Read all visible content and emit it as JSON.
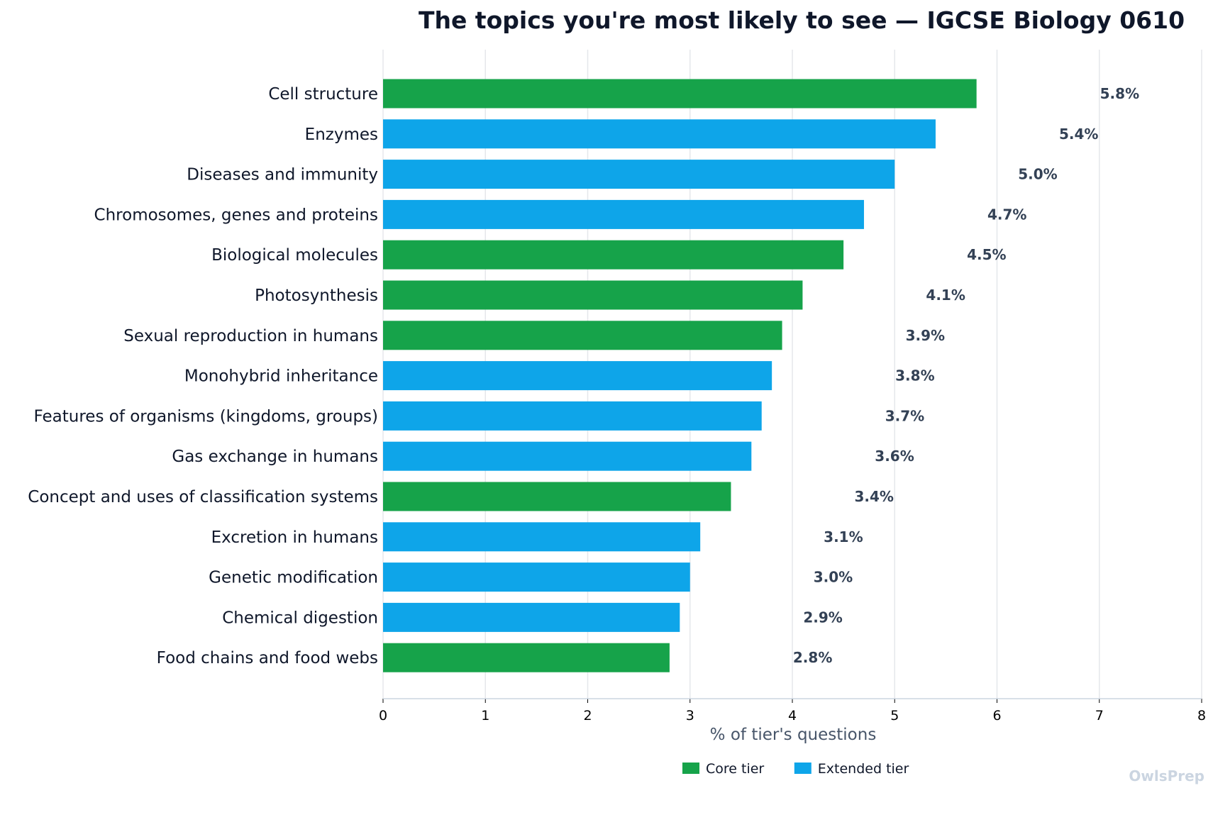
{
  "chart_data": {
    "type": "bar",
    "orientation": "horizontal",
    "title": "The topics you're most likely to see — IGCSE Biology 0610",
    "xlabel": "% of tier's questions",
    "ylabel": "",
    "xlim": [
      0,
      8
    ],
    "x_ticks": [
      "0",
      "1",
      "2",
      "3",
      "4",
      "5",
      "6",
      "7",
      "8"
    ],
    "grid": "vertical",
    "legend_position": "bottom-center",
    "legend": [
      {
        "tier": "core",
        "label": "Core tier",
        "color": "#16a34a"
      },
      {
        "tier": "extended",
        "label": "Extended tier",
        "color": "#0ea5e9"
      }
    ],
    "bars": [
      {
        "category": "Cell structure",
        "value": 5.8,
        "label": "5.8%",
        "tier": "core"
      },
      {
        "category": "Enzymes",
        "value": 5.4,
        "label": "5.4%",
        "tier": "extended"
      },
      {
        "category": "Diseases and immunity",
        "value": 5.0,
        "label": "5.0%",
        "tier": "extended"
      },
      {
        "category": "Chromosomes, genes and proteins",
        "value": 4.7,
        "label": "4.7%",
        "tier": "extended"
      },
      {
        "category": "Biological molecules",
        "value": 4.5,
        "label": "4.5%",
        "tier": "core"
      },
      {
        "category": "Photosynthesis",
        "value": 4.1,
        "label": "4.1%",
        "tier": "core"
      },
      {
        "category": "Sexual reproduction in humans",
        "value": 3.9,
        "label": "3.9%",
        "tier": "core"
      },
      {
        "category": "Monohybrid inheritance",
        "value": 3.8,
        "label": "3.8%",
        "tier": "extended"
      },
      {
        "category": "Features of organisms (kingdoms, groups)",
        "value": 3.7,
        "label": "3.7%",
        "tier": "extended"
      },
      {
        "category": "Gas exchange in humans",
        "value": 3.6,
        "label": "3.6%",
        "tier": "extended"
      },
      {
        "category": "Concept and uses of classification systems",
        "value": 3.4,
        "label": "3.4%",
        "tier": "core"
      },
      {
        "category": "Excretion in humans",
        "value": 3.1,
        "label": "3.1%",
        "tier": "extended"
      },
      {
        "category": "Genetic modification",
        "value": 3.0,
        "label": "3.0%",
        "tier": "extended"
      },
      {
        "category": "Chemical digestion",
        "value": 2.9,
        "label": "2.9%",
        "tier": "extended"
      },
      {
        "category": "Food chains and food webs",
        "value": 2.8,
        "label": "2.8%",
        "tier": "core"
      }
    ],
    "watermark": "OwlsPrep",
    "colors": {
      "title": "#0f172a",
      "category_label": "#0f172a",
      "value_label": "#334155",
      "axis_label": "#475569",
      "grid": "#e5e7eb",
      "axis": "#cbd5e1",
      "watermark": "#cbd5e1"
    }
  }
}
